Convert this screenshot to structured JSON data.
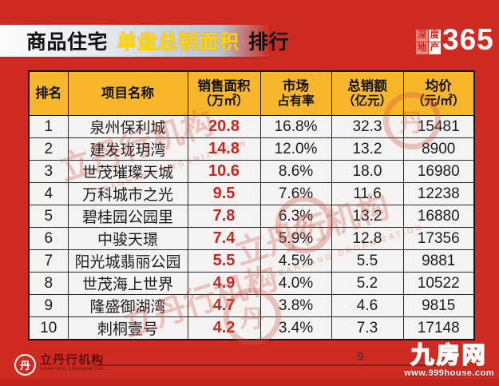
{
  "header": {
    "title_part1": "商品住宅",
    "title_highlight": "单盘总销面积",
    "title_part2": "排行",
    "logo": {
      "chars": [
        "深",
        "度",
        "地",
        "产"
      ],
      "number": "365"
    }
  },
  "table": {
    "columns": [
      {
        "label": "排名",
        "sub": ""
      },
      {
        "label": "项目名称",
        "sub": ""
      },
      {
        "label": "销售面积",
        "sub": "（万㎡）"
      },
      {
        "label": "市场",
        "sub": "占有率"
      },
      {
        "label": "总销额",
        "sub": "（亿元）"
      },
      {
        "label": "均价",
        "sub": "（元/㎡）"
      }
    ],
    "rows": [
      {
        "rank": "1",
        "name": "泉州保利城",
        "area": "20.8",
        "share": "16.8%",
        "amount": "32.3",
        "price": "15481"
      },
      {
        "rank": "2",
        "name": "建发珑玥湾",
        "area": "14.8",
        "share": "12.0%",
        "amount": "13.2",
        "price": "8900"
      },
      {
        "rank": "3",
        "name": "世茂璀璨天城",
        "area": "10.6",
        "share": "8.6%",
        "amount": "18.0",
        "price": "16980"
      },
      {
        "rank": "4",
        "name": "万科城市之光",
        "area": "9.5",
        "share": "7.6%",
        "amount": "11.6",
        "price": "12238"
      },
      {
        "rank": "5",
        "name": "碧桂园公园里",
        "area": "7.8",
        "share": "6.3%",
        "amount": "13.2",
        "price": "16880"
      },
      {
        "rank": "6",
        "name": "中骏天璟",
        "area": "7.4",
        "share": "5.9%",
        "amount": "12.8",
        "price": "17356"
      },
      {
        "rank": "7",
        "name": "阳光城翡丽公园",
        "area": "5.5",
        "share": "4.5%",
        "amount": "5.5",
        "price": "9881"
      },
      {
        "rank": "8",
        "name": "世茂海上世界",
        "area": "4.9",
        "share": "4.0%",
        "amount": "5.2",
        "price": "10522"
      },
      {
        "rank": "9",
        "name": "隆盛御湖湾",
        "area": "4.7",
        "share": "3.8%",
        "amount": "4.6",
        "price": "9815"
      },
      {
        "rank": "10",
        "name": "刺桐壹号",
        "area": "4.2",
        "share": "3.4%",
        "amount": "7.3",
        "price": "17148"
      }
    ]
  },
  "watermark": {
    "text": "立丹行机构",
    "latin": "LIDANHANG ORGANIZATION",
    "seal_glyph": "丹"
  },
  "footer": {
    "agency_name": "立丹行机构",
    "agency_sub": "LIDANHANG ORGANIZATION",
    "agency_logo_glyph": "丹",
    "page_number": "9",
    "site_name": "九房网",
    "site_url": "www.999house.com"
  },
  "colors": {
    "background_red": "#ce2b22",
    "header_orange": "#f8b62d",
    "highlight_yellow": "#ffd800",
    "area_value_red": "#c02825",
    "cell_bg": "#f4f3f1"
  }
}
